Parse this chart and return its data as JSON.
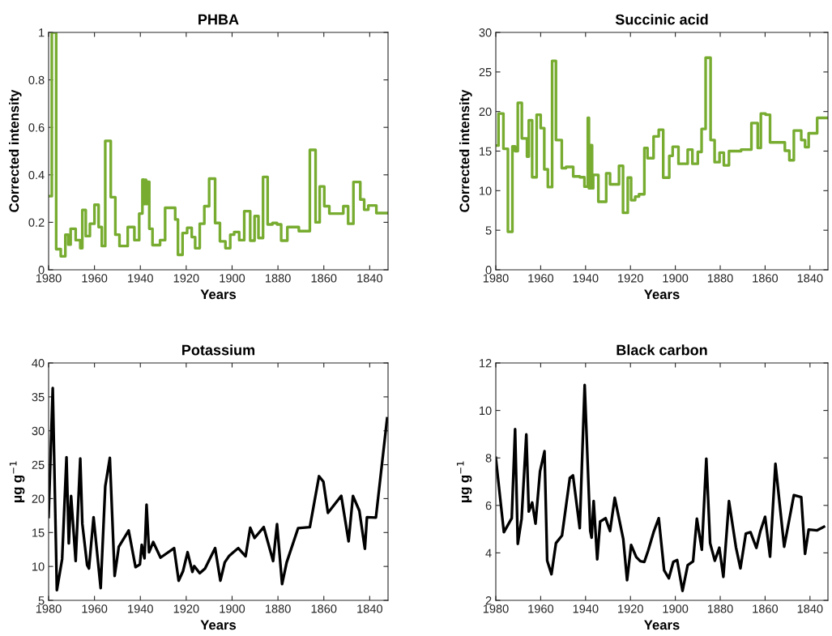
{
  "chart_data": [
    {
      "type": "step",
      "title": "PHBA",
      "xlabel": "Years",
      "ylabel": "Corrected intensity",
      "xlim": [
        1980,
        1832
      ],
      "xticks": [
        1980,
        1960,
        1940,
        1920,
        1900,
        1880,
        1860,
        1840
      ],
      "ylim": [
        0,
        1
      ],
      "yticks": [
        0,
        0.2,
        0.4,
        0.6,
        0.8,
        1
      ],
      "grid": false,
      "legend": false,
      "color": "#77ac30",
      "x": [
        1980,
        1978.6,
        1976.7,
        1974.7,
        1972.7,
        1971.4,
        1970.4,
        1968.2,
        1966.2,
        1965.3,
        1963.8,
        1962.0,
        1960.0,
        1958.2,
        1956.8,
        1955.3,
        1952.9,
        1950.9,
        1949.1,
        1945.5,
        1942.6,
        1940.5,
        1939.1,
        1938.5,
        1938.0,
        1937.5,
        1937.1,
        1936.1,
        1934.7,
        1931.4,
        1929.2,
        1924.8,
        1923.6,
        1921.6,
        1919.6,
        1917.6,
        1916.1,
        1914.1,
        1912.1,
        1910.0,
        1907.4,
        1905.3,
        1902.9,
        1900.8,
        1899.1,
        1896.9,
        1894.7,
        1892.1,
        1890.2,
        1888.5,
        1886.5,
        1884.5,
        1882.4,
        1880.4,
        1878.6,
        1875.9,
        1870.9,
        1866.1,
        1863.6,
        1861.8,
        1859.8,
        1857.6,
        1851.5,
        1849.4,
        1847.1,
        1844.1,
        1842.4,
        1840.6,
        1837.1,
        1832
      ],
      "values": [
        0.31,
        1.0,
        0.087,
        0.057,
        0.148,
        0.106,
        0.173,
        0.125,
        0.091,
        0.252,
        0.142,
        0.194,
        0.274,
        0.18,
        0.1,
        0.543,
        0.306,
        0.148,
        0.1,
        0.18,
        0.125,
        0.237,
        0.38,
        0.277,
        0.379,
        0.277,
        0.371,
        0.173,
        0.104,
        0.125,
        0.261,
        0.212,
        0.063,
        0.155,
        0.177,
        0.138,
        0.091,
        0.194,
        0.268,
        0.384,
        0.197,
        0.12,
        0.091,
        0.148,
        0.159,
        0.125,
        0.247,
        0.123,
        0.226,
        0.134,
        0.391,
        0.191,
        0.197,
        0.191,
        0.123,
        0.18,
        0.163,
        0.505,
        0.2,
        0.351,
        0.268,
        0.237,
        0.268,
        0.194,
        0.37,
        0.296,
        0.253,
        0.271,
        0.239,
        0.239
      ]
    },
    {
      "type": "step",
      "title": "Succinic acid",
      "xlabel": "Years",
      "ylabel": "Corrected intensity",
      "xlim": [
        1980,
        1832
      ],
      "xticks": [
        1980,
        1960,
        1940,
        1920,
        1900,
        1880,
        1860,
        1840
      ],
      "ylim": [
        0,
        30
      ],
      "yticks": [
        0,
        5,
        10,
        15,
        20,
        25,
        30
      ],
      "grid": false,
      "legend": false,
      "color": "#77ac30",
      "x": [
        1980,
        1978.8,
        1976.6,
        1974.6,
        1972.6,
        1971.4,
        1970.2,
        1968.4,
        1966.1,
        1965.3,
        1963.8,
        1961.8,
        1960.0,
        1958.4,
        1956.8,
        1954.9,
        1953.2,
        1950.6,
        1948.7,
        1945.5,
        1942.6,
        1940.5,
        1939.0,
        1938.5,
        1937.8,
        1937.1,
        1936.6,
        1934.3,
        1930.8,
        1929.1,
        1925.1,
        1923.3,
        1921.2,
        1919.7,
        1917.9,
        1916.2,
        1913.8,
        1912.4,
        1909.7,
        1907.4,
        1905.4,
        1902.7,
        1901.2,
        1898.6,
        1894.5,
        1892.4,
        1890.0,
        1888.3,
        1886.5,
        1884.3,
        1882.5,
        1880.3,
        1878.4,
        1876.1,
        1870.7,
        1866.1,
        1863.3,
        1861.9,
        1859.8,
        1857.8,
        1851.2,
        1849.2,
        1847.2,
        1843.9,
        1842.2,
        1840.6,
        1836.8,
        1832
      ],
      "values": [
        15.7,
        19.75,
        15.3,
        4.8,
        15.6,
        15.0,
        21.1,
        16.6,
        14.3,
        18.9,
        11.7,
        19.6,
        17.9,
        12.7,
        10.45,
        26.4,
        16.4,
        12.85,
        13.0,
        11.8,
        11.7,
        10.5,
        19.2,
        10.3,
        15.75,
        10.3,
        12.0,
        8.6,
        12.2,
        10.8,
        13.15,
        7.2,
        11.65,
        8.8,
        9.25,
        9.55,
        15.4,
        14.1,
        16.85,
        17.7,
        11.65,
        14.4,
        15.55,
        13.4,
        15.2,
        13.4,
        14.9,
        17.8,
        26.8,
        16.4,
        13.6,
        14.8,
        13.2,
        15.0,
        15.2,
        18.55,
        15.4,
        19.75,
        19.6,
        16.1,
        15.05,
        13.85,
        17.6,
        16.4,
        15.5,
        17.25,
        19.2,
        19.2
      ]
    },
    {
      "type": "line",
      "title": "Potassium",
      "xlabel": "Years",
      "ylabel": "μg g$^{−1}$",
      "xlim": [
        1980,
        1832
      ],
      "xticks": [
        1980,
        1960,
        1940,
        1920,
        1900,
        1880,
        1860,
        1840
      ],
      "ylim": [
        5,
        40
      ],
      "yticks": [
        5,
        10,
        15,
        20,
        25,
        30,
        35,
        40
      ],
      "grid": false,
      "legend": false,
      "color": "#000000",
      "x": [
        1980,
        1978.2,
        1976.4,
        1974.1,
        1972.2,
        1971.2,
        1970.2,
        1968.2,
        1966.2,
        1965.3,
        1963.2,
        1962.4,
        1960.4,
        1957.3,
        1955.3,
        1953.3,
        1951.2,
        1949.4,
        1945.1,
        1942.1,
        1940.2,
        1939.4,
        1938.2,
        1937.3,
        1936.2,
        1934.4,
        1931.2,
        1925.3,
        1923.3,
        1921.4,
        1919.4,
        1917.3,
        1916.5,
        1914.1,
        1911.8,
        1907.4,
        1905.1,
        1903.2,
        1901.4,
        1899.4,
        1897.3,
        1894.1,
        1892.1,
        1890.2,
        1886.2,
        1882.1,
        1880.4,
        1878.2,
        1876.2,
        1871.2,
        1866.1,
        1862.1,
        1860.2,
        1858.2,
        1852.4,
        1849.2,
        1847.3,
        1844.5,
        1842.1,
        1841.2,
        1837.3,
        1832.4
      ],
      "values": [
        17.3,
        36.3,
        6.5,
        11.1,
        26.1,
        13.4,
        20.4,
        10.8,
        25.9,
        16.3,
        10.2,
        9.7,
        17.25,
        6.8,
        21.8,
        26.0,
        8.6,
        12.9,
        15.3,
        9.9,
        10.3,
        13.2,
        11.2,
        19.1,
        12.1,
        13.6,
        11.3,
        12.7,
        7.9,
        9.3,
        12.1,
        9.2,
        10.05,
        9.0,
        9.7,
        12.7,
        7.9,
        10.6,
        11.5,
        12.1,
        12.7,
        11.5,
        15.7,
        14.2,
        15.8,
        10.8,
        16.25,
        7.4,
        10.6,
        15.65,
        15.8,
        23.3,
        22.5,
        17.9,
        20.4,
        13.7,
        20.4,
        18.2,
        12.6,
        17.25,
        17.2,
        31.85
      ]
    },
    {
      "type": "line",
      "title": "Black carbon",
      "xlabel": "Years",
      "ylabel": "μg g$^{−1}$",
      "xlim": [
        1980,
        1832
      ],
      "xticks": [
        1980,
        1960,
        1940,
        1920,
        1900,
        1880,
        1860,
        1840
      ],
      "ylim": [
        2,
        12
      ],
      "yticks": [
        2,
        4,
        6,
        8,
        10,
        12
      ],
      "grid": false,
      "legend": false,
      "color": "#000000",
      "x": [
        1980,
        1976.4,
        1972.9,
        1971.4,
        1970.2,
        1968.5,
        1966.4,
        1965.3,
        1963.8,
        1962.3,
        1960.3,
        1958.3,
        1957.1,
        1955.2,
        1953.2,
        1950.5,
        1947.0,
        1945.6,
        1942.6,
        1940.4,
        1937.9,
        1937.3,
        1936.4,
        1934.8,
        1933.5,
        1931.1,
        1929.1,
        1927.0,
        1923.2,
        1921.5,
        1919.7,
        1917.4,
        1915.6,
        1913.8,
        1912.1,
        1909.7,
        1907.4,
        1905.0,
        1902.9,
        1900.9,
        1899.2,
        1896.8,
        1894.5,
        1892.1,
        1890.4,
        1888.2,
        1886.2,
        1884.5,
        1882.4,
        1880.4,
        1878.6,
        1876.1,
        1873.0,
        1871.0,
        1868.6,
        1866.5,
        1863.9,
        1862.1,
        1860.0,
        1857.8,
        1855.4,
        1851.5,
        1847.2,
        1843.9,
        1842.2,
        1840.6,
        1836.8,
        1833.8
      ],
      "values": [
        8.0,
        4.87,
        5.46,
        9.21,
        4.38,
        5.44,
        8.99,
        5.74,
        6.12,
        5.23,
        7.43,
        8.28,
        3.67,
        3.1,
        4.41,
        4.73,
        7.16,
        7.26,
        5.04,
        11.07,
        4.92,
        4.64,
        6.18,
        3.73,
        5.32,
        5.46,
        4.92,
        6.32,
        4.58,
        2.85,
        4.33,
        3.82,
        3.65,
        3.62,
        4.1,
        4.87,
        5.46,
        3.27,
        2.93,
        3.62,
        3.7,
        2.4,
        3.48,
        3.64,
        5.44,
        4.13,
        7.97,
        4.41,
        3.67,
        4.22,
        2.99,
        6.18,
        4.24,
        3.35,
        4.81,
        4.87,
        4.21,
        4.92,
        5.52,
        3.84,
        7.75,
        4.26,
        6.43,
        6.35,
        3.96,
        4.98,
        4.95,
        5.1
      ]
    }
  ]
}
